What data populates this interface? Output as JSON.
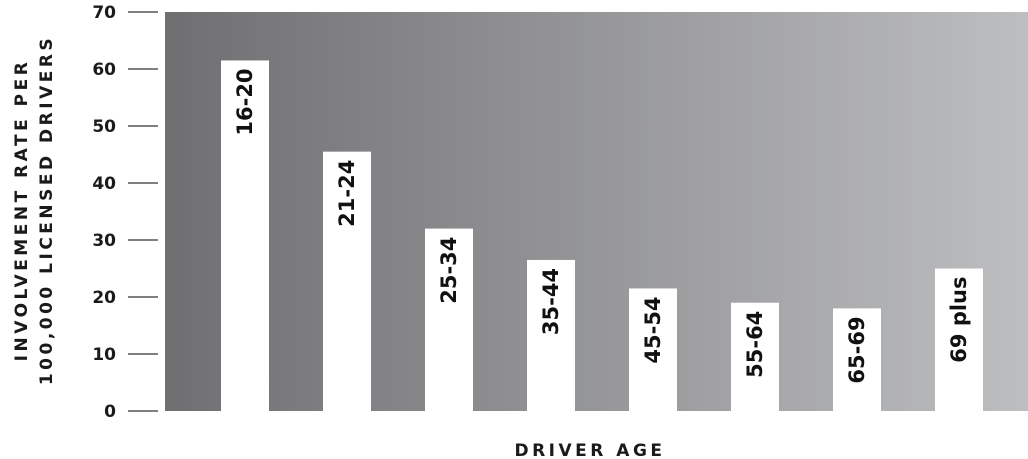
{
  "chart_data": {
    "type": "bar",
    "title": "",
    "xlabel": "DRIVER AGE",
    "ylabel_lines": [
      "INVOLVEMENT RATE PER",
      "100,000 LICENSED DRIVERS"
    ],
    "categories": [
      "16-20",
      "21-24",
      "25-34",
      "35-44",
      "45-54",
      "55-64",
      "65-69",
      "69 plus"
    ],
    "values": [
      61.5,
      45.5,
      32,
      26.5,
      21.5,
      19,
      18,
      25
    ],
    "ylim": [
      0,
      70
    ],
    "yticks": [
      "0",
      "10",
      "20",
      "30",
      "40",
      "50",
      "60",
      "70"
    ],
    "grid": false,
    "legend": "none",
    "colors": {
      "bar": "#ffffff",
      "background_left": "#6f6f71",
      "background_right": "#bdbec0",
      "text": "#1a1a1a"
    }
  }
}
